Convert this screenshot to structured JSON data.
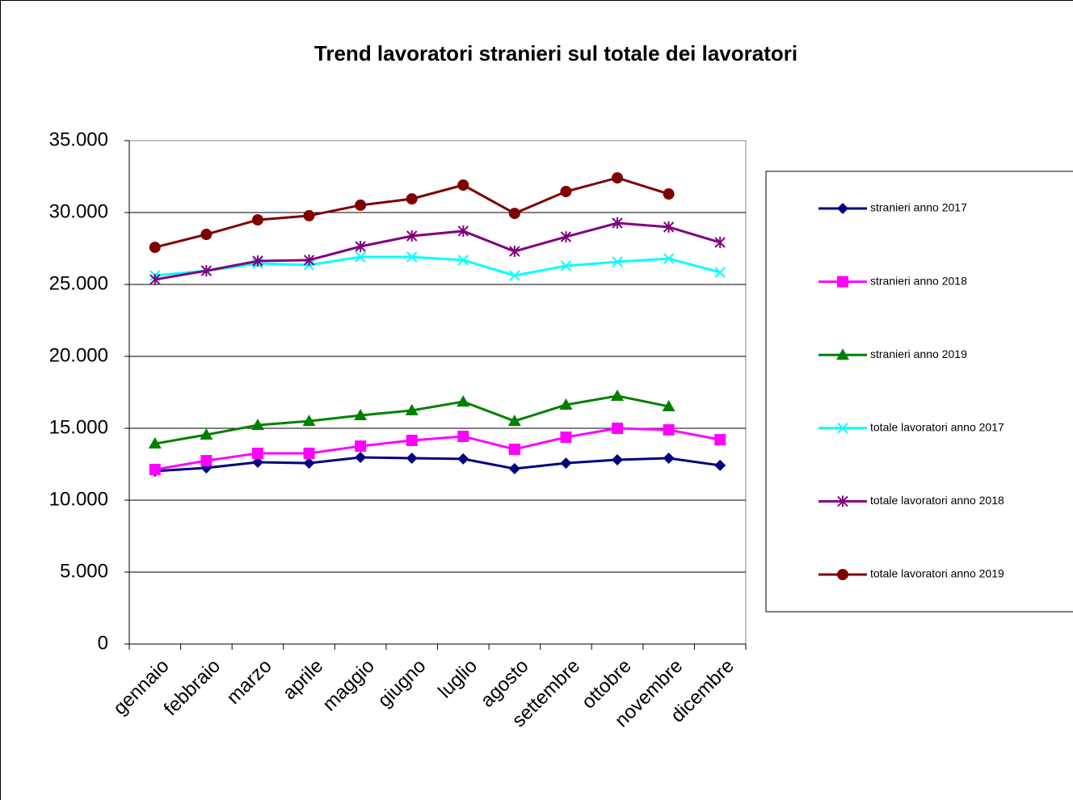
{
  "chart_data": {
    "type": "line",
    "title": "Trend lavoratori stranieri sul totale dei lavoratori",
    "categories": [
      "gennaio",
      "febbraio",
      "marzo",
      "aprile",
      "maggio",
      "giugno",
      "luglio",
      "agosto",
      "settembre",
      "ottobre",
      "novembre",
      "dicembre"
    ],
    "series": [
      {
        "name": "stranieri anno 2017",
        "color": "#000080",
        "marker": "diamond",
        "values": [
          12020,
          12250,
          12640,
          12580,
          12980,
          12920,
          12870,
          12190,
          12580,
          12810,
          12920,
          12420
        ]
      },
      {
        "name": "stranieri anno 2018",
        "color": "#ff00ff",
        "marker": "square",
        "values": [
          12130,
          12750,
          13260,
          13260,
          13760,
          14160,
          14440,
          13540,
          14380,
          15000,
          14890,
          14210
        ]
      },
      {
        "name": "stranieri anno 2019",
        "color": "#008000",
        "marker": "triangle",
        "values": [
          13930,
          14550,
          15220,
          15500,
          15900,
          16240,
          16850,
          15500,
          16630,
          17250,
          16520,
          null
        ]
      },
      {
        "name": "totale lavoratori anno 2017",
        "color": "#00ffff",
        "marker": "x",
        "values": [
          25620,
          25950,
          26460,
          26350,
          26910,
          26910,
          26690,
          25620,
          26290,
          26570,
          26800,
          25840
        ]
      },
      {
        "name": "totale lavoratori anno 2018",
        "color": "#800080",
        "marker": "star",
        "values": [
          25340,
          25950,
          26630,
          26690,
          27640,
          28370,
          28710,
          27300,
          28310,
          29270,
          28990,
          27920
        ]
      },
      {
        "name": "totale lavoratori anno 2019",
        "color": "#800000",
        "marker": "circle",
        "values": [
          27580,
          28480,
          29490,
          29780,
          30510,
          30950,
          31910,
          29940,
          31460,
          32410,
          31290,
          null
        ]
      }
    ],
    "ylim": [
      0,
      35000
    ],
    "yticks": [
      0,
      {
        "value": 5000,
        "label": "5.000"
      },
      {
        "value": 10000,
        "label": "10.000"
      },
      {
        "value": 15000,
        "label": "15.000"
      },
      {
        "value": 20000,
        "label": "20.000"
      },
      {
        "value": 25000,
        "label": "25.000"
      },
      {
        "value": 30000,
        "label": "30.000"
      },
      {
        "value": 35000,
        "label": "35.000"
      }
    ],
    "grid": true,
    "legend": "right"
  }
}
